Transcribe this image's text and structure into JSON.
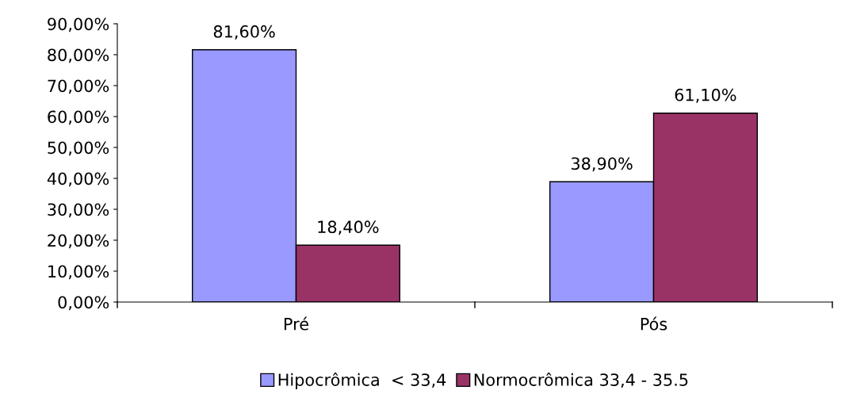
{
  "chart_data": {
    "type": "bar",
    "categories": [
      "Pré",
      "Pós"
    ],
    "series": [
      {
        "name": "Hipocrômica  < 33,4",
        "color": "#9999ff",
        "values": [
          81.6,
          38.9
        ],
        "value_labels": [
          "81,60%",
          "38,90%"
        ]
      },
      {
        "name": "Normocrômica 33,4 - 35.5",
        "color": "#993366",
        "values": [
          18.4,
          61.1
        ],
        "value_labels": [
          "18,40%",
          "61,10%"
        ]
      }
    ],
    "ylim": [
      0,
      90
    ],
    "yticks": [
      {
        "value": 0,
        "label": "0,00%"
      },
      {
        "value": 10,
        "label": "10,00%"
      },
      {
        "value": 20,
        "label": "20,00%"
      },
      {
        "value": 30,
        "label": "30,00%"
      },
      {
        "value": 40,
        "label": "40,00%"
      },
      {
        "value": 50,
        "label": "50,00%"
      },
      {
        "value": 60,
        "label": "60,00%"
      },
      {
        "value": 70,
        "label": "70,00%"
      },
      {
        "value": 80,
        "label": "80,00%"
      },
      {
        "value": 90,
        "label": "90,00%"
      }
    ],
    "grid": false,
    "legend": "bottom"
  }
}
